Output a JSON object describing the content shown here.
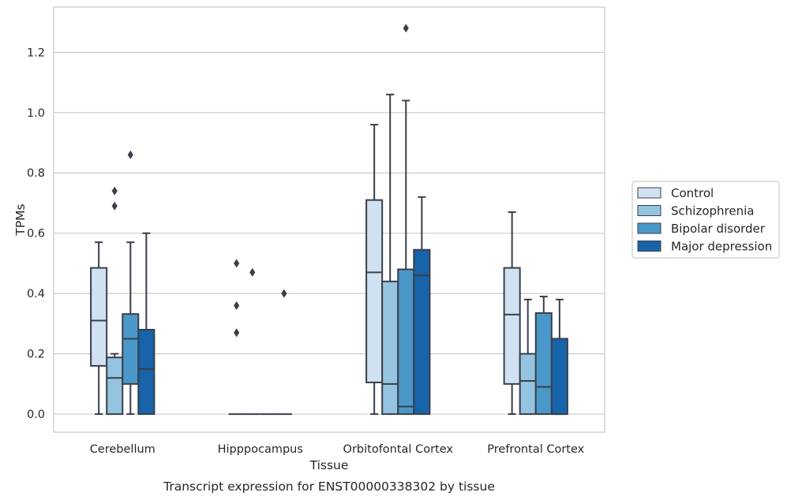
{
  "chart_data": {
    "type": "box",
    "caption": "Transcript expression for ENST00000338302 by tissue",
    "xlabel": "Tissue",
    "ylabel": "TPMs",
    "ylim": [
      -0.06,
      1.35
    ],
    "yticks": [
      0.0,
      0.2,
      0.4,
      0.6,
      0.8,
      1.0,
      1.2
    ],
    "ytick_labels": [
      "0.0",
      "0.2",
      "0.4",
      "0.6",
      "0.8",
      "1.0",
      "1.2"
    ],
    "grid": "horizontal",
    "legend_position": "right",
    "categories": [
      "Cerebellum",
      "Hipppocampus",
      "Orbitofontal Cortex",
      "Prefrontal Cortex"
    ],
    "series": [
      {
        "name": "Control",
        "color": "#d0e1f2",
        "boxes": [
          {
            "whislo": 0.0,
            "q1": 0.16,
            "med": 0.31,
            "q3": 0.485,
            "whishi": 0.57,
            "fliers": []
          },
          {
            "whislo": 0.0,
            "q1": 0.0,
            "med": 0.0,
            "q3": 0.0,
            "whishi": 0.0,
            "fliers": [
              0.5,
              0.36,
              0.27
            ]
          },
          {
            "whislo": 0.0,
            "q1": 0.105,
            "med": 0.47,
            "q3": 0.71,
            "whishi": 0.96,
            "fliers": []
          },
          {
            "whislo": 0.0,
            "q1": 0.1,
            "med": 0.33,
            "q3": 0.485,
            "whishi": 0.67,
            "fliers": []
          }
        ]
      },
      {
        "name": "Schizophrenia",
        "color": "#94c4df",
        "boxes": [
          {
            "whislo": 0.0,
            "q1": 0.0,
            "med": 0.12,
            "q3": 0.188,
            "whishi": 0.2,
            "fliers": [
              0.74,
              0.69
            ]
          },
          {
            "whislo": 0.0,
            "q1": 0.0,
            "med": 0.0,
            "q3": 0.0,
            "whishi": 0.0,
            "fliers": [
              0.47
            ]
          },
          {
            "whislo": 0.0,
            "q1": 0.0,
            "med": 0.1,
            "q3": 0.44,
            "whishi": 1.06,
            "fliers": []
          },
          {
            "whislo": 0.0,
            "q1": 0.0,
            "med": 0.11,
            "q3": 0.2,
            "whishi": 0.38,
            "fliers": []
          }
        ]
      },
      {
        "name": "Bipolar disorder",
        "color": "#4a98c9",
        "boxes": [
          {
            "whislo": 0.0,
            "q1": 0.1,
            "med": 0.25,
            "q3": 0.332,
            "whishi": 0.57,
            "fliers": [
              0.86
            ]
          },
          {
            "whislo": 0.0,
            "q1": 0.0,
            "med": 0.0,
            "q3": 0.0,
            "whishi": 0.0,
            "fliers": []
          },
          {
            "whislo": 0.0,
            "q1": 0.0,
            "med": 0.025,
            "q3": 0.48,
            "whishi": 1.04,
            "fliers": [
              1.28
            ]
          },
          {
            "whislo": 0.0,
            "q1": 0.0,
            "med": 0.09,
            "q3": 0.335,
            "whishi": 0.39,
            "fliers": []
          }
        ]
      },
      {
        "name": "Major depression",
        "color": "#1764ab",
        "boxes": [
          {
            "whislo": 0.0,
            "q1": 0.0,
            "med": 0.15,
            "q3": 0.28,
            "whishi": 0.6,
            "fliers": []
          },
          {
            "whislo": 0.0,
            "q1": 0.0,
            "med": 0.0,
            "q3": 0.0,
            "whishi": 0.0,
            "fliers": [
              0.4
            ]
          },
          {
            "whislo": 0.0,
            "q1": 0.0,
            "med": 0.46,
            "q3": 0.545,
            "whishi": 0.72,
            "fliers": []
          },
          {
            "whislo": 0.0,
            "q1": 0.0,
            "med": 0.0,
            "q3": 0.25,
            "whishi": 0.38,
            "fliers": []
          }
        ]
      }
    ]
  }
}
